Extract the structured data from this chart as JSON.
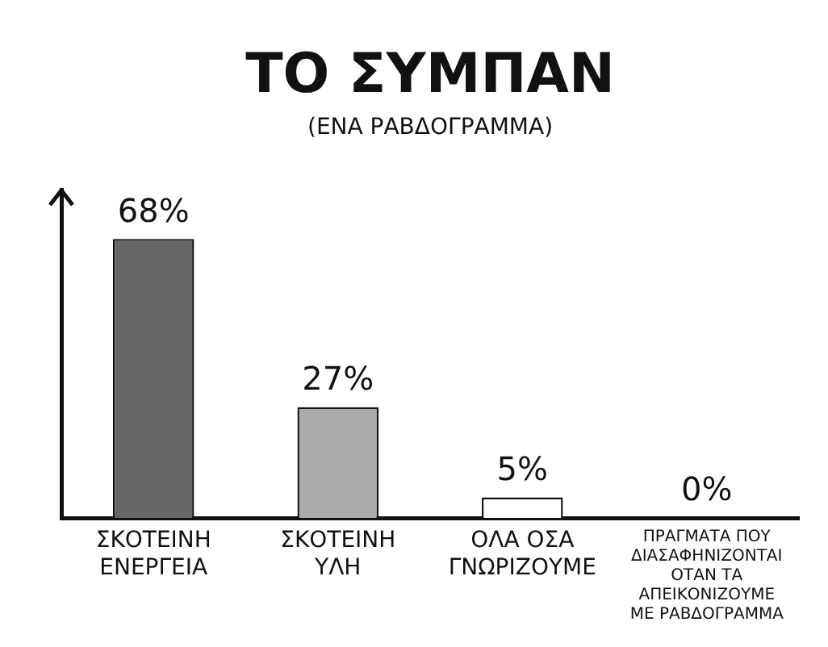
{
  "chart_data": {
    "type": "bar",
    "title": "ΤΟ ΣΥΜΠΑΝ",
    "subtitle": "(ΕΝΑ ΡΑΒΔΟΓΡΑΜΜΑ)",
    "categories": [
      "ΣΚΟΤΕΙΝΗ ΕΝΕΡΓΕΙΑ",
      "ΣΚΟΤΕΙΝΗ ΥΛΗ",
      "ΟΛΑ ΟΣΑ ΓΝΩΡΙΖΟΥΜΕ",
      "ΠΡΑΓΜΑΤΑ ΠΟΥ ΔΙΑΣΑΦΗΝΙΖΟΝΤΑΙ ΟΤΑΝ ΤΑ ΑΠΕΙΚΟΝΙΖΟΥΜΕ ΜΕ ΡΑΒΔΟΓΡΑΜΜΑ"
    ],
    "values": [
      68,
      27,
      5,
      0
    ],
    "colors": [
      "#666666",
      "#aaaaaa",
      "#ffffff",
      "#ffffff"
    ],
    "value_labels": [
      "68%",
      "27%",
      "5%",
      "0%"
    ],
    "tick_labels": "x",
    "grid": false,
    "legend": false
  }
}
